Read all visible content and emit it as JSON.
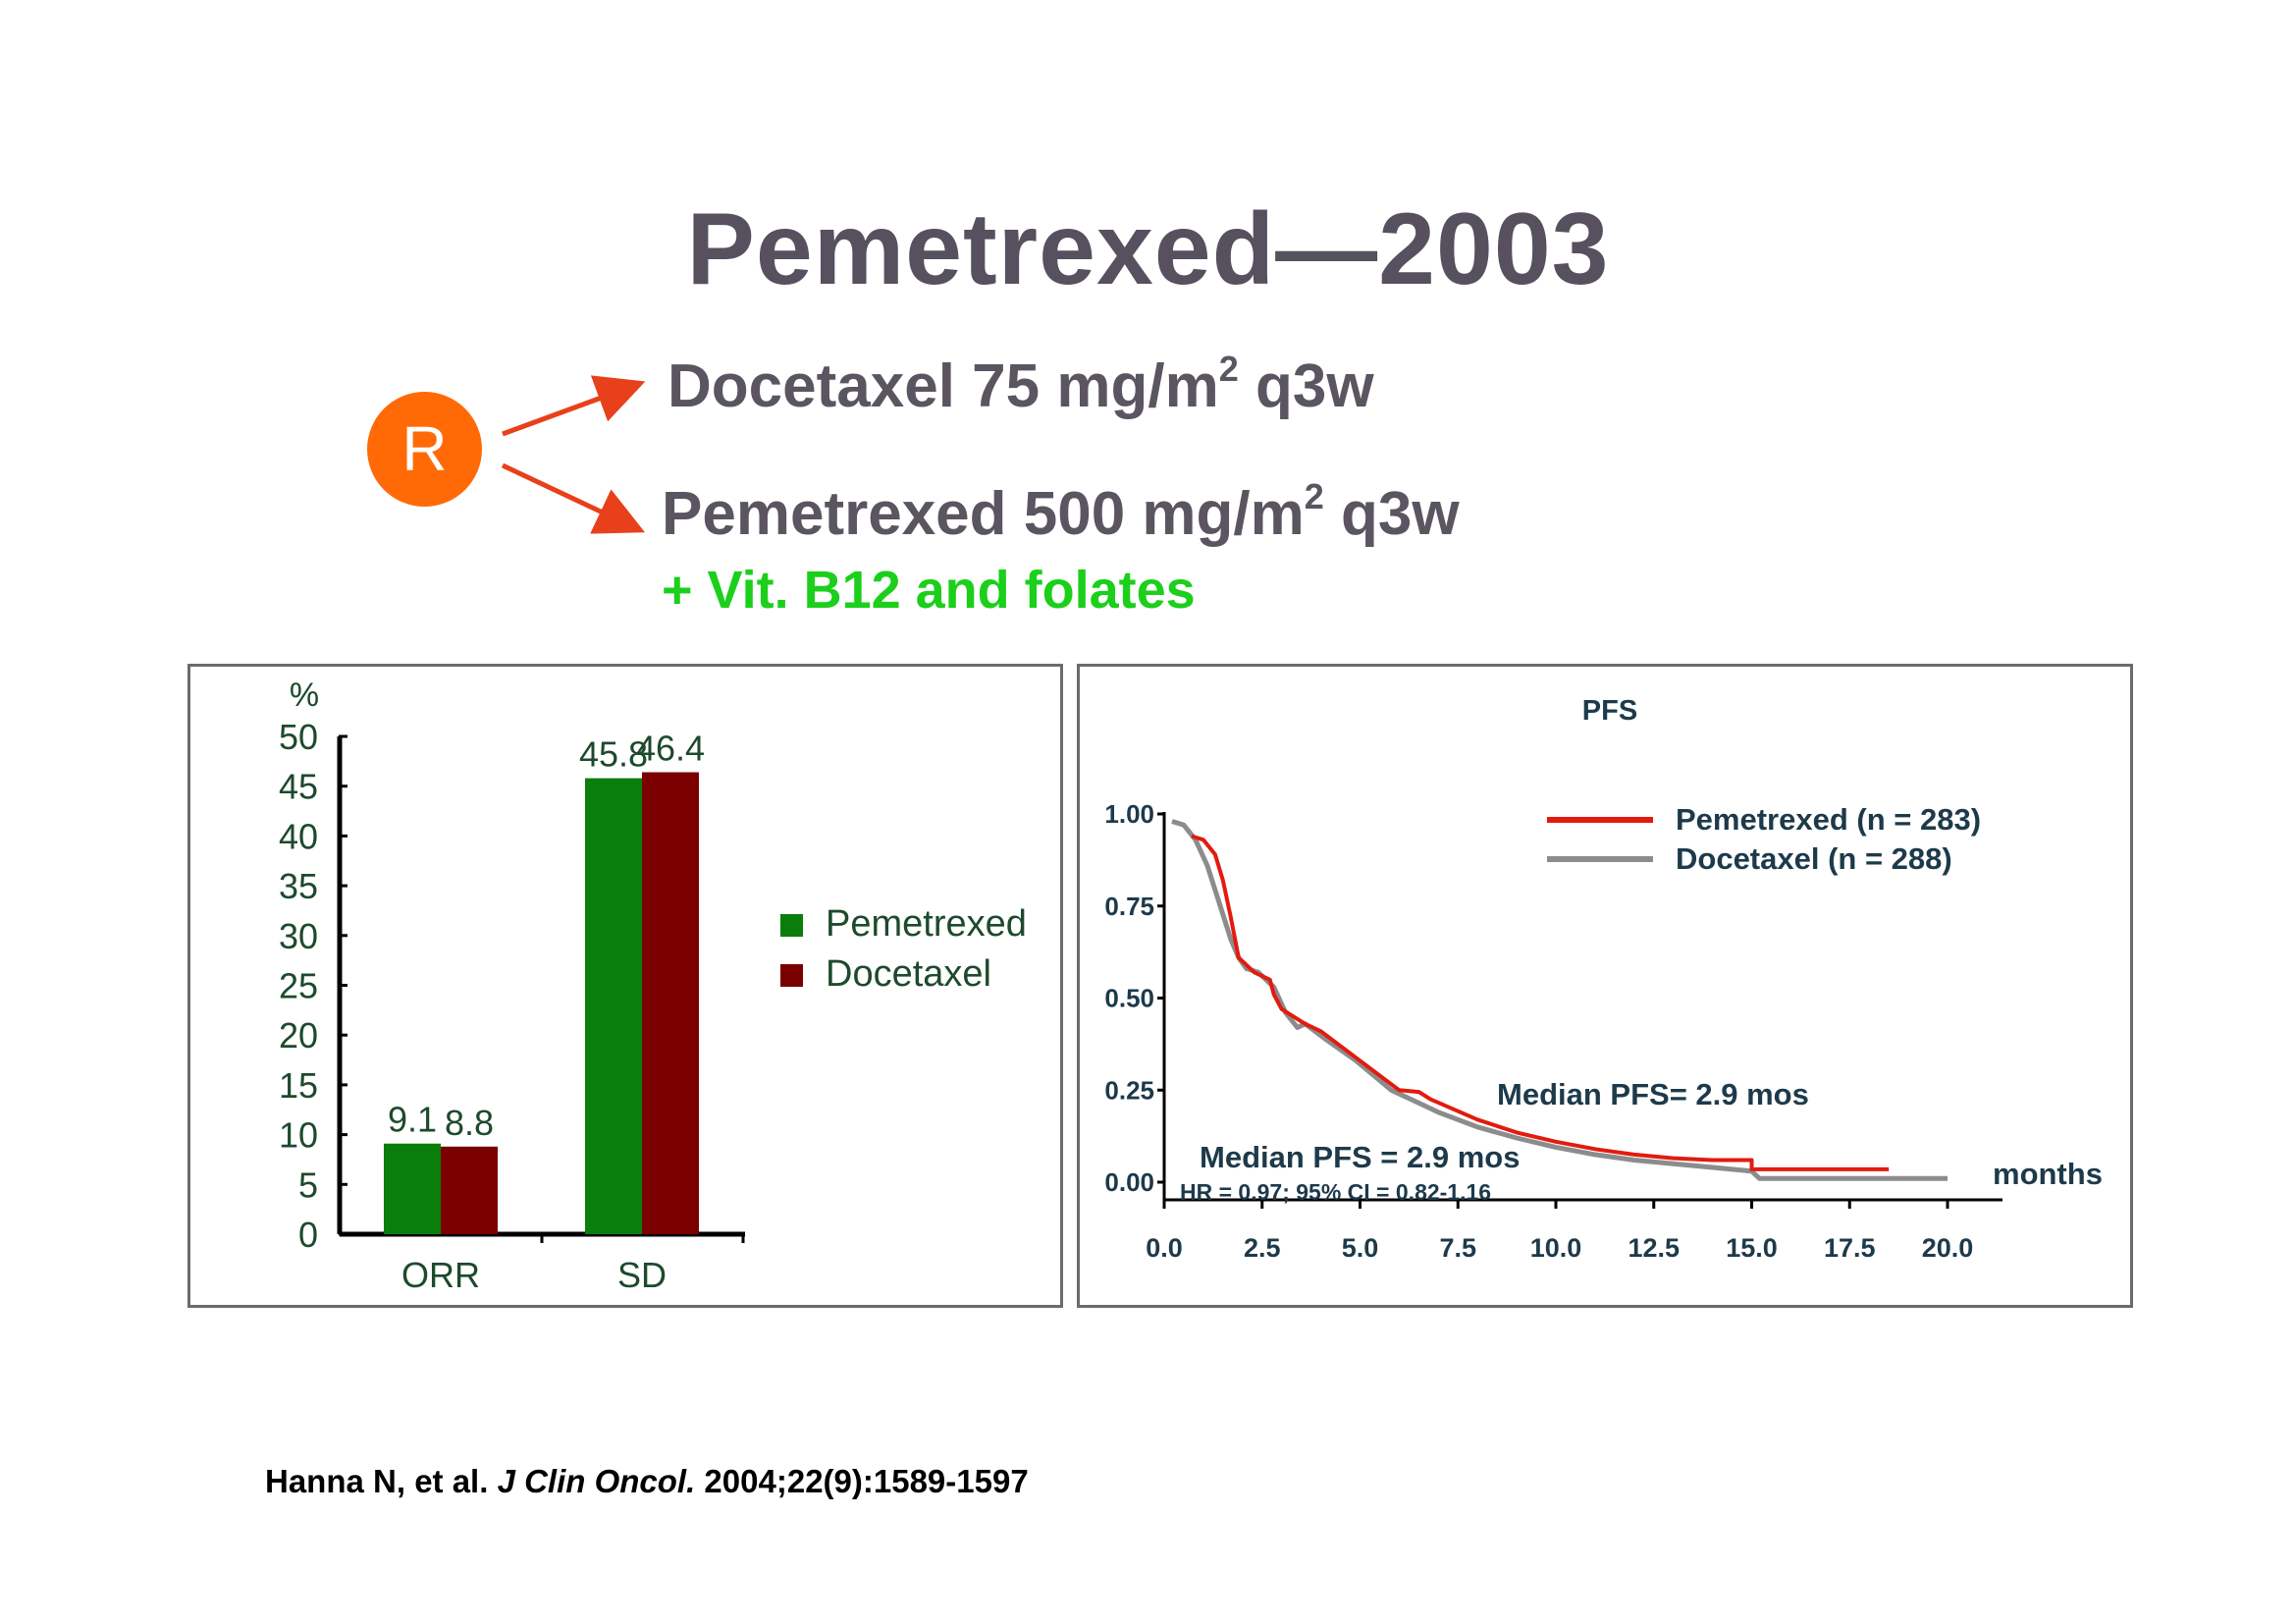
{
  "slide": {
    "title": "Pemetrexed—2003",
    "randomization_label": "R",
    "arm1": {
      "text": "Docetaxel 75 mg/m",
      "superscript": "2",
      "suffix": " q3w"
    },
    "arm2": {
      "text": "Pemetrexed 500 mg/m",
      "superscript": "2",
      "suffix": " q3w",
      "note": "+ Vit. B12 and folates"
    },
    "citation": {
      "authors": "Hanna N, et al. ",
      "journal": "J Clin Oncol.",
      "details": " 2004;22(9):1589-1597"
    },
    "colors": {
      "title": "#57505f",
      "accent_orange": "#ff6a07",
      "arrow": "#e8401a",
      "note_green": "#1bcf1b"
    }
  },
  "chart_data": [
    {
      "type": "bar",
      "ylabel": "%",
      "ylim": [
        0,
        50
      ],
      "yticks": [
        0,
        5,
        10,
        15,
        20,
        25,
        30,
        35,
        40,
        45,
        50
      ],
      "categories": [
        "ORR",
        "SD"
      ],
      "series": [
        {
          "name": "Pemetrexed",
          "values": [
            9.1,
            45.8
          ],
          "labels": [
            "9.1",
            "45.8"
          ],
          "color": "#0b7d0b"
        },
        {
          "name": "Docetaxel",
          "values": [
            8.8,
            46.4
          ],
          "labels": [
            "8.8",
            "46.4"
          ],
          "color": "#7a0000"
        }
      ],
      "legend": "right"
    },
    {
      "type": "line",
      "title": "PFS",
      "xlabel": "months",
      "xlim": [
        0,
        20
      ],
      "ylim": [
        0,
        1
      ],
      "xticks": [
        "0.0",
        "2.5",
        "5.0",
        "7.5",
        "10.0",
        "12.5",
        "15.0",
        "17.5",
        "20.0"
      ],
      "yticks": [
        "0.00",
        "0.25",
        "0.50",
        "0.75",
        "1.00"
      ],
      "legend": "top-right",
      "series": [
        {
          "name": "Pemetrexed (n = 283)",
          "color": "#e21b0f",
          "x": [
            0.7,
            1.0,
            1.3,
            1.5,
            1.7,
            1.9,
            2.1,
            2.3,
            2.7,
            2.8,
            3.0,
            3.3,
            3.6,
            4.0,
            5.0,
            6.0,
            6.5,
            6.8,
            8.0,
            9.0,
            10.0,
            11.0,
            12.0,
            13.0,
            14.0,
            15.0,
            15.0,
            16.0,
            17.0,
            18.5
          ],
          "y": [
            0.94,
            0.93,
            0.89,
            0.82,
            0.72,
            0.61,
            0.59,
            0.57,
            0.55,
            0.51,
            0.47,
            0.45,
            0.43,
            0.41,
            0.33,
            0.25,
            0.245,
            0.225,
            0.17,
            0.135,
            0.11,
            0.09,
            0.075,
            0.065,
            0.06,
            0.06,
            0.035,
            0.035,
            0.035,
            0.035
          ]
        },
        {
          "name": "Docetaxel (n = 288)",
          "color": "#8c8c8c",
          "x": [
            0.2,
            0.5,
            0.8,
            1.1,
            1.4,
            1.7,
            1.9,
            2.1,
            2.4,
            2.8,
            3.1,
            3.4,
            3.6,
            4.1,
            4.9,
            5.8,
            6.4,
            7.0,
            8.0,
            9.0,
            10.0,
            11.0,
            12.0,
            13.0,
            14.0,
            15.0,
            15.2,
            16.0,
            18.0,
            20.0
          ],
          "y": [
            0.98,
            0.97,
            0.93,
            0.86,
            0.76,
            0.66,
            0.61,
            0.58,
            0.57,
            0.53,
            0.46,
            0.42,
            0.43,
            0.39,
            0.33,
            0.25,
            0.22,
            0.19,
            0.15,
            0.12,
            0.095,
            0.075,
            0.06,
            0.05,
            0.04,
            0.03,
            0.01,
            0.01,
            0.01,
            0.01
          ]
        }
      ],
      "annotations": [
        {
          "id": "median_pem",
          "text": "Median PFS= 2.9 mos"
        },
        {
          "id": "median_doc",
          "text": "Median PFS = 2.9 mos"
        },
        {
          "id": "hr",
          "text": "HR = 0.97; 95% CI = 0.82-1.16"
        }
      ]
    }
  ]
}
